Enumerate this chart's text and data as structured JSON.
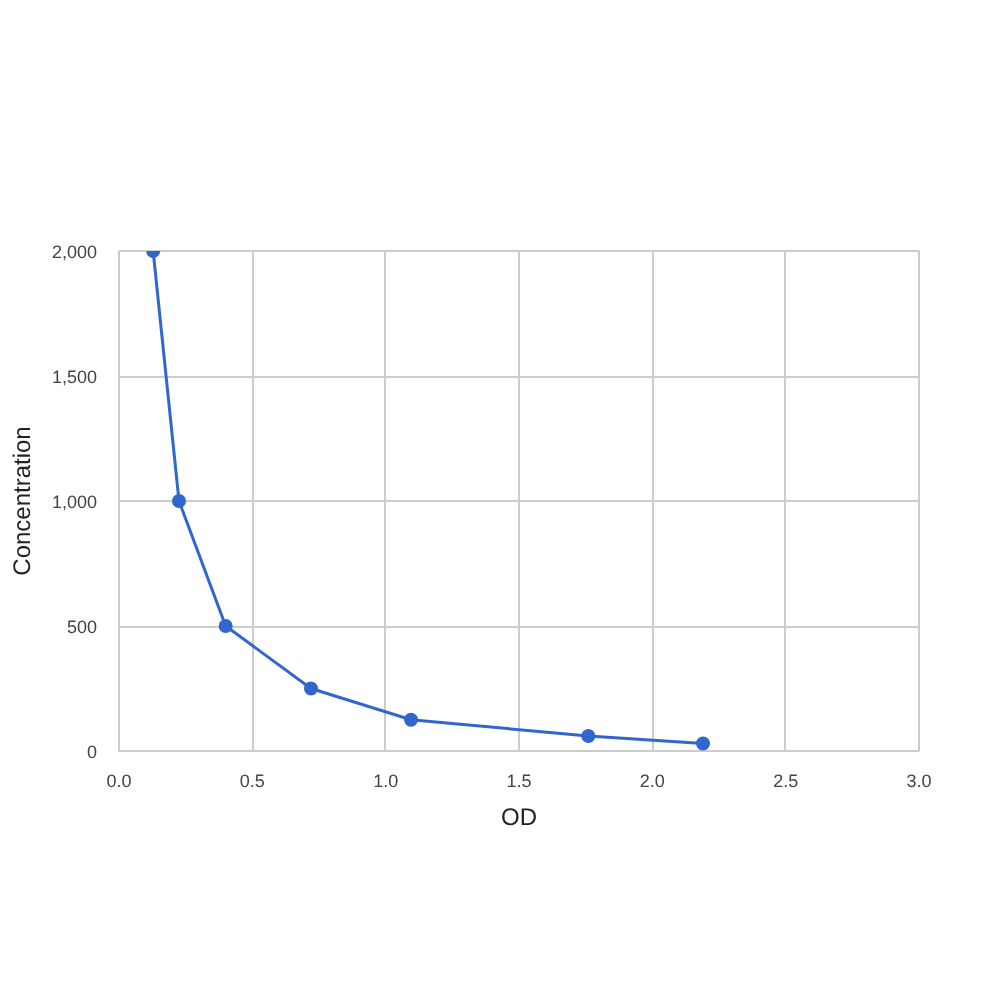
{
  "chart_data": {
    "type": "line",
    "xlabel": "OD",
    "ylabel": "Concentration",
    "x": [
      0.128,
      0.225,
      0.4,
      0.72,
      1.095,
      1.76,
      2.19
    ],
    "series": [
      {
        "color": "#3366cc",
        "values": [
          2000,
          1000,
          500,
          250,
          125,
          60,
          30
        ]
      }
    ],
    "xlim": [
      0,
      3
    ],
    "ylim": [
      0,
      2000
    ],
    "xticks": [
      {
        "value": 0,
        "label": "0.0"
      },
      {
        "value": 0.5,
        "label": "0.5"
      },
      {
        "value": 1,
        "label": "1.0"
      },
      {
        "value": 1.5,
        "label": "1.5"
      },
      {
        "value": 2,
        "label": "2.0"
      },
      {
        "value": 2.5,
        "label": "2.5"
      },
      {
        "value": 3,
        "label": "3.0"
      }
    ],
    "yticks": [
      0,
      500,
      {
        "value": 1000,
        "label": "1,000"
      },
      {
        "value": 1500,
        "label": "1,500"
      },
      {
        "value": 2000,
        "label": "2,000"
      }
    ],
    "grid": true,
    "marker": "circle",
    "line_style": "solid"
  }
}
